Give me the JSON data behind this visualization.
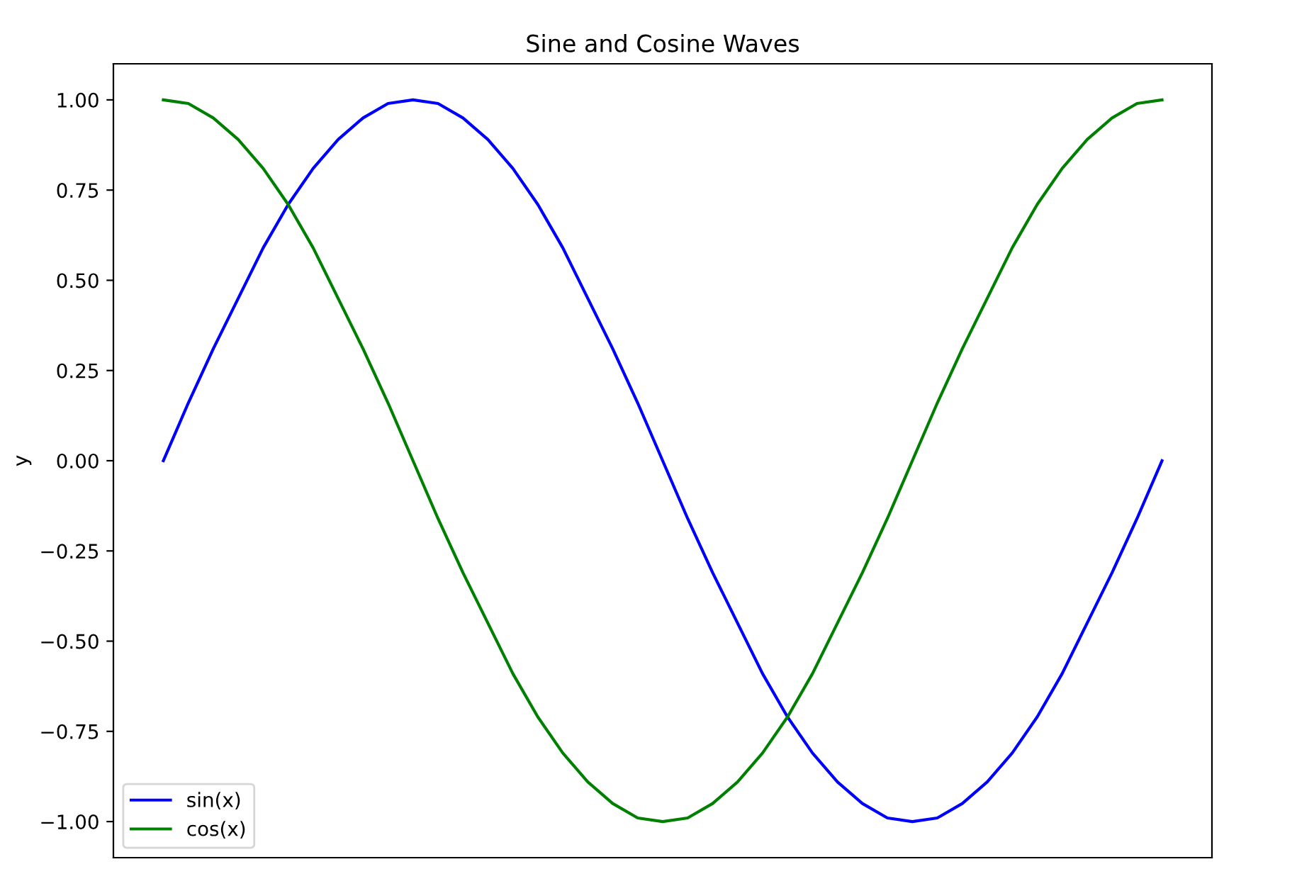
{
  "chart_data": {
    "type": "line",
    "title": "Sine and Cosine Waves",
    "ylabel": "y",
    "categories": [
      null,
      null,
      null,
      null,
      null,
      null,
      null,
      null,
      null,
      null,
      null,
      null,
      null,
      null,
      null,
      null,
      null,
      null,
      null,
      null,
      null,
      null,
      null,
      null,
      null,
      null,
      null,
      null,
      null,
      null,
      null,
      null,
      null,
      null,
      null,
      null,
      null,
      null,
      null,
      null,
      null
    ],
    "series": [
      {
        "name": "sin(x)",
        "color": "#0000ff",
        "values": [
          0,
          0.16,
          0.31,
          0.45,
          0.59,
          0.71,
          0.81,
          0.89,
          0.95,
          0.99,
          1,
          0.99,
          0.95,
          0.89,
          0.81,
          0.71,
          0.59,
          0.45,
          0.31,
          0.16,
          0,
          -0.16,
          -0.31,
          -0.45,
          -0.59,
          -0.71,
          -0.81,
          -0.89,
          -0.95,
          -0.99,
          -1,
          -0.99,
          -0.95,
          -0.89,
          -0.81,
          -0.71,
          -0.59,
          -0.45,
          -0.31,
          -0.16,
          0
        ]
      },
      {
        "name": "cos(x)",
        "color": "#008000",
        "values": [
          1,
          0.99,
          0.95,
          0.89,
          0.81,
          0.71,
          0.59,
          0.45,
          0.31,
          0.16,
          0,
          -0.16,
          -0.31,
          -0.45,
          -0.59,
          -0.71,
          -0.81,
          -0.89,
          -0.95,
          -0.99,
          -1,
          -0.99,
          -0.95,
          -0.89,
          -0.81,
          -0.71,
          -0.59,
          -0.45,
          -0.31,
          -0.16,
          0,
          0.16,
          0.31,
          0.45,
          0.59,
          0.71,
          0.81,
          0.89,
          0.95,
          0.99,
          1
        ]
      }
    ],
    "ylim": [
      -1.1,
      1.1
    ],
    "yticks": [
      {
        "value": -1,
        "label": "−1.00"
      },
      {
        "value": -0.75,
        "label": "−0.75"
      },
      {
        "value": -0.5,
        "label": "−0.50"
      },
      {
        "value": -0.25,
        "label": "−0.25"
      },
      {
        "value": 0,
        "label": "0.00"
      },
      {
        "value": 0.25,
        "label": "0.25"
      },
      {
        "value": 0.5,
        "label": "0.50"
      },
      {
        "value": 0.75,
        "label": "0.75"
      },
      {
        "value": 1,
        "label": "1.00"
      }
    ],
    "tick_labels": "y",
    "legend": "lower left",
    "grid": false,
    "marker": "none",
    "line_style": "solid"
  }
}
